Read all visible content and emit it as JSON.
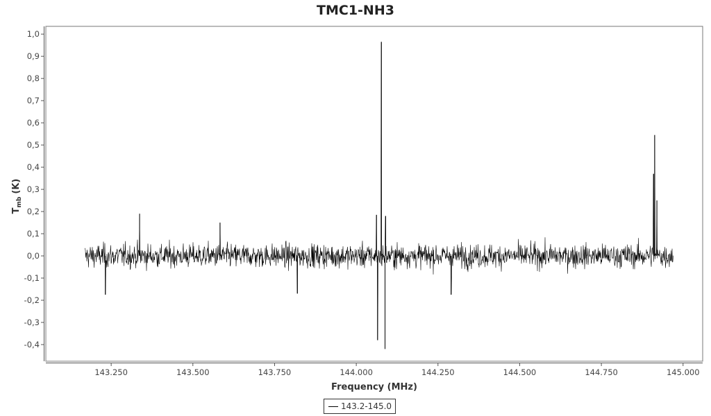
{
  "chart_data": {
    "type": "line",
    "title": "TMC1-NH3",
    "xlabel": "Frequency (MHz)",
    "ylabel_main": "T",
    "ylabel_sub": "mb",
    "ylabel_unit": "(K)",
    "xlim": [
      143.05,
      145.06
    ],
    "ylim": [
      -0.475,
      1.035
    ],
    "x_ticks": [
      143.25,
      143.5,
      143.75,
      144.0,
      144.25,
      144.5,
      144.75,
      145.0
    ],
    "x_tick_labels": [
      "143.250",
      "143.500",
      "143.750",
      "144.000",
      "144.250",
      "144.500",
      "144.750",
      "145.000"
    ],
    "y_ticks": [
      1.0,
      0.9,
      0.8,
      0.7,
      0.6,
      0.5,
      0.4,
      0.3,
      0.2,
      0.1,
      0.0,
      -0.1,
      -0.2,
      -0.3,
      -0.4
    ],
    "y_tick_labels": [
      "1,0",
      "0,9",
      "0,8",
      "0,7",
      "0,6",
      "0,5",
      "0,4",
      "0,3",
      "0,2",
      "0,1",
      "0,0",
      "-0,1",
      "-0,2",
      "-0,3",
      "-0,4"
    ],
    "grid": false,
    "legend_position": "bottom-center",
    "series": [
      {
        "name": "143.2-145.0",
        "color": "#000000",
        "x_range": [
          143.17,
          144.97
        ],
        "noise_rms_K": 0.045,
        "spikes": [
          {
            "x": 143.337,
            "y": 0.19
          },
          {
            "x": 143.232,
            "y": -0.175
          },
          {
            "x": 143.583,
            "y": 0.15
          },
          {
            "x": 143.82,
            "y": -0.17
          },
          {
            "x": 144.062,
            "y": 0.185
          },
          {
            "x": 144.065,
            "y": -0.38
          },
          {
            "x": 144.077,
            "y": 0.965
          },
          {
            "x": 144.088,
            "y": -0.42
          },
          {
            "x": 144.09,
            "y": 0.18
          },
          {
            "x": 144.29,
            "y": -0.175
          },
          {
            "x": 144.91,
            "y": 0.37
          },
          {
            "x": 144.913,
            "y": 0.545
          },
          {
            "x": 144.92,
            "y": 0.25
          }
        ]
      }
    ]
  }
}
